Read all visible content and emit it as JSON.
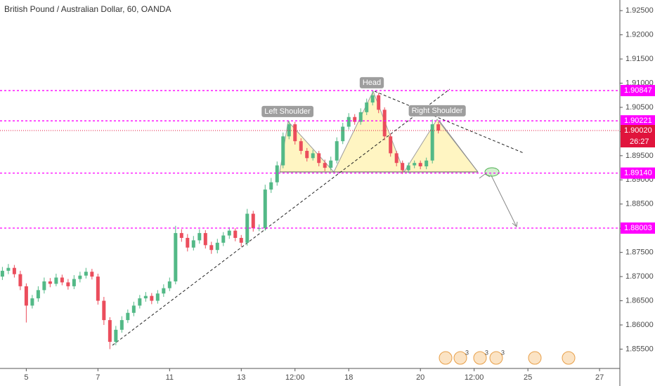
{
  "chart_data": {
    "type": "candlestick",
    "title": "British Pound / Australian Dollar, 60, OANDA",
    "x": [
      -4,
      -3,
      -2,
      -1,
      0,
      1,
      2,
      3,
      4,
      5,
      6,
      7,
      8,
      9,
      10,
      11,
      12,
      13,
      14,
      15,
      16,
      17,
      18,
      19,
      20,
      21,
      22,
      23,
      24,
      25,
      26,
      27,
      28,
      29,
      30,
      31,
      32,
      33,
      34,
      35,
      36,
      37,
      38,
      39,
      40,
      41,
      42,
      43,
      44,
      45,
      46,
      47,
      48,
      49,
      50,
      51,
      52,
      53,
      54,
      55,
      56,
      57,
      58,
      59,
      60,
      61,
      62,
      63,
      64,
      65,
      66,
      67,
      68,
      69
    ],
    "open": [
      1.87,
      1.8712,
      1.8718,
      1.8705,
      1.868,
      1.864,
      1.8655,
      1.8672,
      1.869,
      1.8685,
      1.8698,
      1.8688,
      1.868,
      1.8695,
      1.8702,
      1.871,
      1.87,
      1.865,
      1.861,
      1.8565,
      1.859,
      1.861,
      1.8625,
      1.864,
      1.8655,
      1.866,
      1.865,
      1.8665,
      1.8676,
      1.869,
      1.879,
      1.878,
      1.876,
      1.8775,
      1.879,
      1.8765,
      1.8755,
      1.877,
      1.8785,
      1.8795,
      1.878,
      1.877,
      1.883,
      1.88,
      1.88,
      1.888,
      1.8895,
      1.893,
      1.899,
      1.9015,
      1.898,
      1.896,
      1.8945,
      1.8955,
      1.8935,
      1.8925,
      1.894,
      1.898,
      1.901,
      1.903,
      1.902,
      1.904,
      1.906,
      1.9075,
      1.9045,
      1.899,
      1.8955,
      1.8935,
      1.892,
      1.893,
      1.8935,
      1.8928,
      1.894,
      1.9015
    ],
    "high": [
      1.872,
      1.8726,
      1.8724,
      1.8712,
      1.8686,
      1.8662,
      1.868,
      1.8698,
      1.8697,
      1.8706,
      1.8704,
      1.8695,
      1.8703,
      1.871,
      1.8718,
      1.8716,
      1.8706,
      1.8658,
      1.8616,
      1.8598,
      1.8618,
      1.8632,
      1.8648,
      1.8662,
      1.8668,
      1.8666,
      1.8672,
      1.8684,
      1.8698,
      1.8805,
      1.8798,
      1.8788,
      1.8784,
      1.8798,
      1.8796,
      1.8772,
      1.8778,
      1.8792,
      1.8802,
      1.88,
      1.8786,
      1.884,
      1.8836,
      1.8808,
      1.889,
      1.8904,
      1.8938,
      1.8998,
      1.9022,
      1.902,
      1.8986,
      1.8966,
      1.8962,
      1.896,
      1.8942,
      1.8948,
      1.8988,
      1.9018,
      1.9038,
      1.9036,
      1.9048,
      1.9068,
      1.9085,
      1.908,
      1.905,
      1.8996,
      1.896,
      1.894,
      1.8936,
      1.894,
      1.894,
      1.8946,
      1.9025,
      1.902
    ],
    "low": [
      1.8693,
      1.8705,
      1.8698,
      1.8672,
      1.8605,
      1.8634,
      1.8648,
      1.8665,
      1.8678,
      1.868,
      1.8682,
      1.8673,
      1.8674,
      1.8688,
      1.8696,
      1.8694,
      1.8642,
      1.86,
      1.855,
      1.8558,
      1.8584,
      1.8604,
      1.8618,
      1.8634,
      1.8648,
      1.8643,
      1.8644,
      1.8658,
      1.867,
      1.8684,
      1.8772,
      1.8752,
      1.8754,
      1.8768,
      1.8758,
      1.8747,
      1.8748,
      1.8763,
      1.8778,
      1.8773,
      1.8762,
      1.8764,
      1.8793,
      1.8794,
      1.8795,
      1.8873,
      1.8888,
      1.8924,
      1.8984,
      1.8973,
      1.8953,
      1.8938,
      1.894,
      1.8928,
      1.8918,
      1.8919,
      1.8934,
      1.8974,
      1.9004,
      1.9014,
      1.9014,
      1.9034,
      1.9054,
      1.9038,
      1.8982,
      1.8948,
      1.8928,
      1.8912,
      1.8914,
      1.8924,
      1.8922,
      1.8922,
      1.8934,
      1.8996
    ],
    "close": [
      1.8712,
      1.8718,
      1.8705,
      1.868,
      1.864,
      1.8655,
      1.8672,
      1.869,
      1.8685,
      1.8698,
      1.8688,
      1.868,
      1.8695,
      1.8702,
      1.871,
      1.87,
      1.865,
      1.861,
      1.8565,
      1.859,
      1.861,
      1.8625,
      1.864,
      1.8655,
      1.866,
      1.865,
      1.8665,
      1.8676,
      1.869,
      1.879,
      1.878,
      1.876,
      1.8775,
      1.879,
      1.8765,
      1.8755,
      1.877,
      1.8785,
      1.8795,
      1.878,
      1.877,
      1.883,
      1.88,
      1.88,
      1.888,
      1.8895,
      1.893,
      1.899,
      1.9015,
      1.898,
      1.896,
      1.8945,
      1.8955,
      1.8935,
      1.8925,
      1.894,
      1.898,
      1.901,
      1.903,
      1.902,
      1.904,
      1.906,
      1.9075,
      1.9045,
      1.899,
      1.8955,
      1.8935,
      1.892,
      1.893,
      1.8935,
      1.8928,
      1.894,
      1.9015,
      1.9002
    ],
    "up_color": "#53b987",
    "down_color": "#eb4d5c",
    "xlim": [
      -4.4,
      99.4
    ],
    "xticks": [
      {
        "value": 0,
        "label": "5"
      },
      {
        "value": 12,
        "label": "7"
      },
      {
        "value": 24,
        "label": "11"
      },
      {
        "value": 36,
        "label": "13"
      },
      {
        "value": 45,
        "label": "12:00"
      },
      {
        "value": 54,
        "label": "18"
      },
      {
        "value": 66,
        "label": "20"
      },
      {
        "value": 75,
        "label": "12:00"
      },
      {
        "value": 84,
        "label": "25"
      },
      {
        "value": 96,
        "label": "27"
      }
    ],
    "ylim": [
      1.851,
      1.9272
    ],
    "yticks": [
      {
        "value": 1.855,
        "label": "1.85500"
      },
      {
        "value": 1.86,
        "label": "1.86000"
      },
      {
        "value": 1.865,
        "label": "1.86500"
      },
      {
        "value": 1.87,
        "label": "1.87000"
      },
      {
        "value": 1.875,
        "label": "1.87500"
      },
      {
        "value": 1.88,
        "label": "1.88000"
      },
      {
        "value": 1.885,
        "label": "1.88500"
      },
      {
        "value": 1.89,
        "label": "1.89000"
      },
      {
        "value": 1.895,
        "label": "1.89500"
      },
      {
        "value": 1.9,
        "label": "1.90000"
      },
      {
        "value": 1.905,
        "label": "1.90500"
      },
      {
        "value": 1.91,
        "label": "1.91000"
      },
      {
        "value": 1.915,
        "label": "1.91500"
      },
      {
        "value": 1.92,
        "label": "1.92000"
      },
      {
        "value": 1.925,
        "label": "1.92500"
      }
    ],
    "levels": [
      {
        "value": 1.90847,
        "label": "1.90847"
      },
      {
        "value": 1.90221,
        "label": "1.90221"
      },
      {
        "value": 1.8914,
        "label": "1.89140"
      },
      {
        "value": 1.88003,
        "label": "1.88003"
      }
    ],
    "level_color": "#ff00ff",
    "current_price": {
      "value": 1.9002,
      "label": "1.90020"
    },
    "current_color": "#e0143c",
    "countdown": "26:27",
    "annotations": {
      "head": "Head",
      "left_shoulder": "Left Shoulder",
      "right_shoulder": "Right Shoulder"
    },
    "event_badges": [
      "3",
      "3",
      "3"
    ]
  }
}
